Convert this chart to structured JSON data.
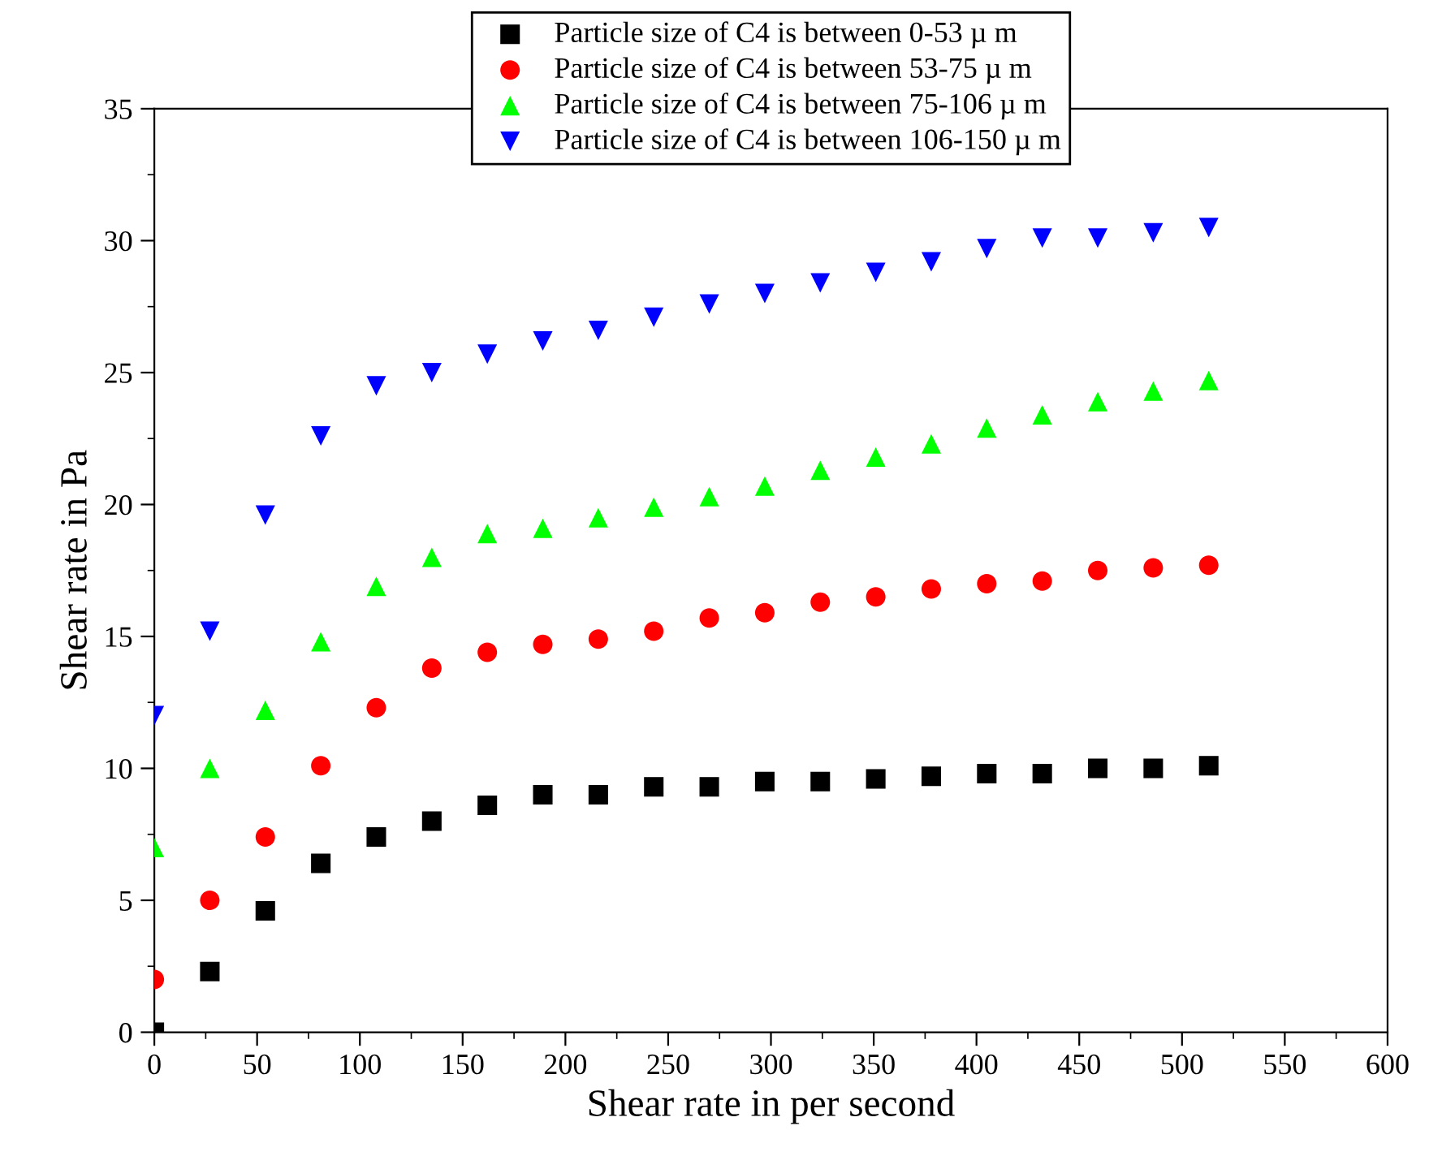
{
  "chart_data": {
    "type": "scatter",
    "xlabel": "Shear rate in per second",
    "ylabel": "Shear rate in Pa",
    "x": [
      0,
      27,
      54,
      81,
      108,
      135,
      162,
      189,
      216,
      243,
      270,
      297,
      324,
      351,
      378,
      405,
      432,
      459,
      486,
      513
    ],
    "series": [
      {
        "name": "Particle size of C4 is between 0-53 µ m",
        "color": "#000000",
        "marker": "square",
        "values": [
          0,
          2.3,
          4.6,
          6.4,
          7.4,
          8.0,
          8.6,
          9.0,
          9.0,
          9.3,
          9.3,
          9.5,
          9.5,
          9.6,
          9.7,
          9.8,
          9.8,
          10.0,
          10.0,
          10.1
        ]
      },
      {
        "name": "Particle size of C4 is between 53-75 µ m",
        "color": "#ff0000",
        "marker": "circle",
        "values": [
          2.0,
          5.0,
          7.4,
          10.1,
          12.3,
          13.8,
          14.4,
          14.7,
          14.9,
          15.2,
          15.7,
          15.9,
          16.3,
          16.5,
          16.8,
          17.0,
          17.1,
          17.5,
          17.6,
          17.7
        ]
      },
      {
        "name": "Particle size of C4 is between 75-106 µ m",
        "color": "#00ff00",
        "marker": "triangle",
        "values": [
          7.0,
          10.0,
          12.2,
          14.8,
          16.9,
          18.0,
          18.9,
          19.1,
          19.5,
          19.9,
          20.3,
          20.7,
          21.3,
          21.8,
          22.3,
          22.9,
          23.4,
          23.9,
          24.3,
          24.7
        ]
      },
      {
        "name": "Particle size of C4 is between 106-150 µ m",
        "color": "#0000ff",
        "marker": "triangle_down",
        "values": [
          12.0,
          15.2,
          19.6,
          22.6,
          24.5,
          25.0,
          25.7,
          26.2,
          26.6,
          27.1,
          27.6,
          28.0,
          28.4,
          28.8,
          29.2,
          29.7,
          30.1,
          30.1,
          30.3,
          30.5
        ]
      }
    ],
    "xlim": [
      0,
      600
    ],
    "xticks": [
      0,
      50,
      100,
      150,
      200,
      250,
      300,
      350,
      400,
      450,
      500,
      550,
      600
    ],
    "ylim": [
      0,
      35
    ],
    "yticks": [
      0,
      5,
      10,
      15,
      20,
      25,
      30,
      35
    ],
    "grid": false,
    "legend": "top"
  }
}
